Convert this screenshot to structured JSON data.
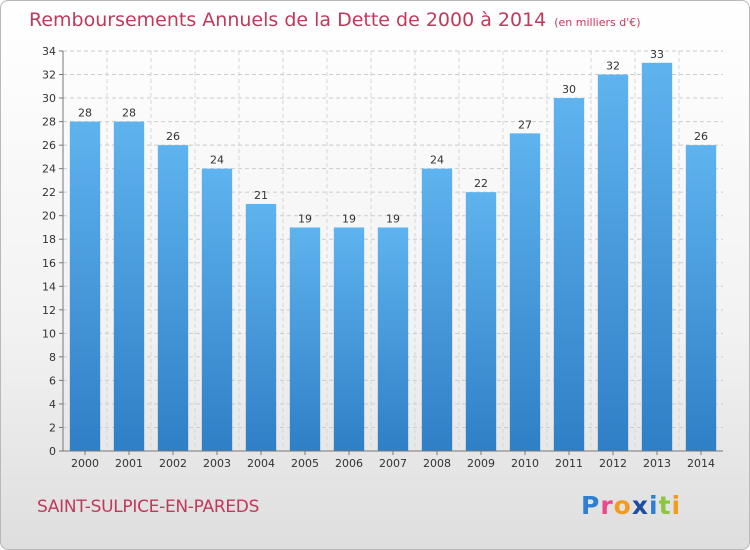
{
  "header": {
    "title": "Remboursements Annuels de la Dette de 2000 à 2014",
    "unit": "(en milliers d'€)"
  },
  "footer": {
    "city": "SAINT-SULPICE-EN-PAREDS",
    "logo_text": "Proxiti"
  },
  "chart_data": {
    "type": "bar",
    "title": "Remboursements Annuels de la Dette de 2000 à 2014",
    "subtitle": "(en milliers d'€)",
    "categories": [
      "2000",
      "2001",
      "2002",
      "2003",
      "2004",
      "2005",
      "2006",
      "2007",
      "2008",
      "2009",
      "2010",
      "2011",
      "2012",
      "2013",
      "2014"
    ],
    "values": [
      28,
      28,
      26,
      24,
      21,
      19,
      19,
      19,
      24,
      22,
      27,
      30,
      32,
      33,
      26
    ],
    "ylim": [
      0,
      34
    ],
    "yticks": [
      0,
      2,
      4,
      6,
      8,
      10,
      12,
      14,
      16,
      18,
      20,
      22,
      24,
      26,
      28,
      30,
      32,
      34
    ],
    "grid": true,
    "bar_color": "#4a9de0"
  }
}
